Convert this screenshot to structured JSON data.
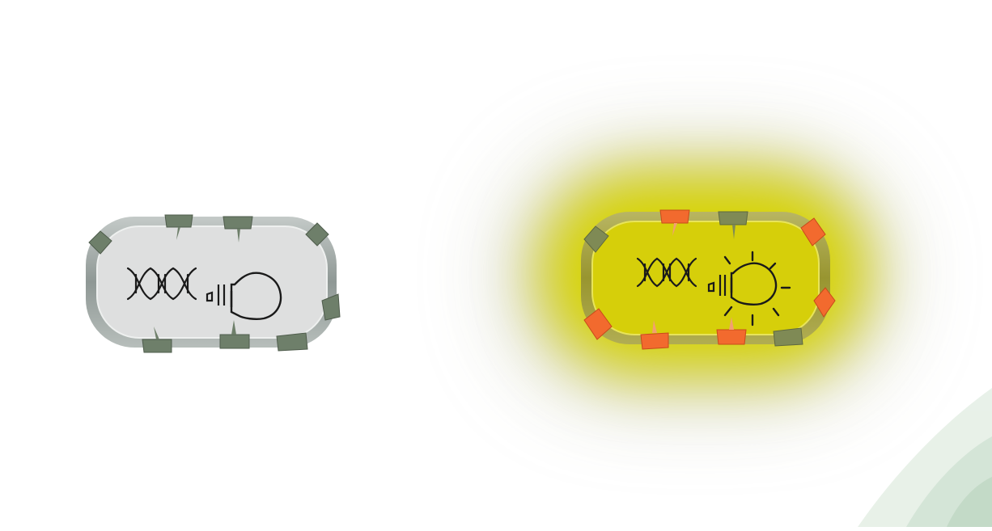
{
  "figure": {
    "cells": [
      {
        "id": "cell-inactive",
        "state": "off",
        "icons": [
          "dna-icon",
          "promoter-icon",
          "lightbulb-off-icon"
        ],
        "membrane_color": "#a9b0ad",
        "fill_color": "#e0e0e0",
        "receptors": [
          {
            "state": "inactive",
            "color": "#6e7f6a"
          },
          {
            "state": "inactive",
            "color": "#6e7f6a"
          },
          {
            "state": "inactive",
            "color": "#6e7f6a"
          },
          {
            "state": "inactive",
            "color": "#6e7f6a"
          },
          {
            "state": "inactive",
            "color": "#6e7f6a"
          },
          {
            "state": "inactive",
            "color": "#6e7f6a"
          },
          {
            "state": "inactive",
            "color": "#6e7f6a"
          },
          {
            "state": "inactive",
            "color": "#6e7f6a"
          }
        ]
      },
      {
        "id": "cell-active",
        "state": "on",
        "icons": [
          "dna-icon",
          "promoter-icon",
          "lightbulb-on-icon"
        ],
        "glow_color": "#d8d400",
        "membrane_color": "#a6a23a",
        "fill_color": "#dcd200",
        "receptors": [
          {
            "state": "bound",
            "color": "#f26a2e"
          },
          {
            "state": "inactive",
            "color": "#7f8a55"
          },
          {
            "state": "bound",
            "color": "#f26a2e"
          },
          {
            "state": "bound",
            "color": "#f26a2e"
          },
          {
            "state": "inactive",
            "color": "#7f8a55"
          },
          {
            "state": "bound",
            "color": "#f26a2e"
          },
          {
            "state": "bound",
            "color": "#f26a2e"
          },
          {
            "state": "bound",
            "color": "#f26a2e"
          },
          {
            "state": "inactive",
            "color": "#7f8a55"
          }
        ]
      }
    ],
    "decoration": {
      "corner_swoosh_color": "#b9d4bd"
    }
  }
}
